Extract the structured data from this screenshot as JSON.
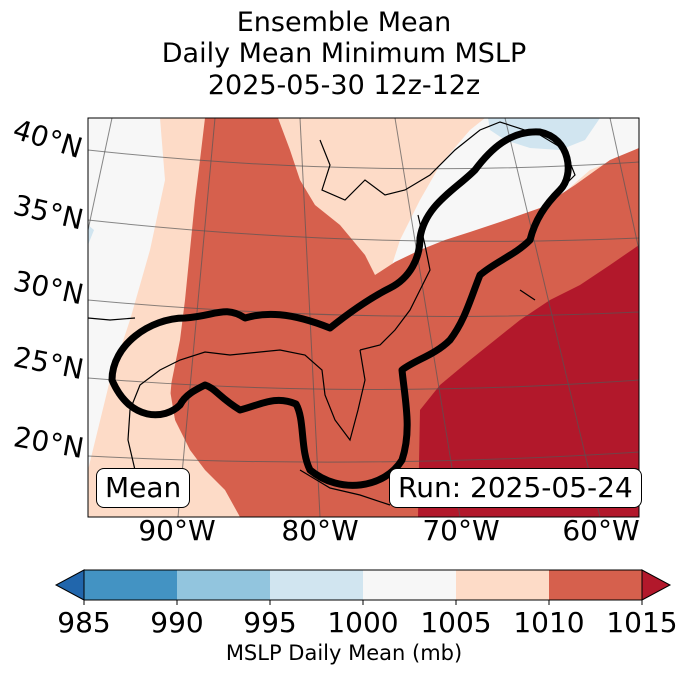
{
  "title": {
    "line1": "Ensemble Mean",
    "line2": "Daily Mean Minimum MSLP",
    "line3": "2025-05-30 12z-12z"
  },
  "labels": {
    "mean": "Mean",
    "run": "Run: 2025-05-24"
  },
  "chart_data": {
    "type": "heatmap",
    "map_projection": "lambert conformal",
    "variable": "Daily Mean Minimum MSLP",
    "units": "mb",
    "lat_ticks": [
      "40°N",
      "35°N",
      "30°N",
      "25°N",
      "20°N"
    ],
    "lon_ticks": [
      "90°W",
      "80°W",
      "70°W",
      "60°W"
    ],
    "colorbar": {
      "label": "MSLP Daily Mean (mb)",
      "ticks": [
        "985",
        "990",
        "995",
        "1000",
        "1005",
        "1010",
        "1015"
      ],
      "bins": [
        {
          "range": [
            985,
            990
          ],
          "color": "#4393c3"
        },
        {
          "range": [
            990,
            995
          ],
          "color": "#92c5de"
        },
        {
          "range": [
            995,
            1000
          ],
          "color": "#d1e5f0"
        },
        {
          "range": [
            1000,
            1005
          ],
          "color": "#f7f7f7"
        },
        {
          "range": [
            1005,
            1010
          ],
          "color": "#fddbc7"
        },
        {
          "range": [
            1010,
            1015
          ],
          "color": "#d6604d"
        }
      ],
      "under_color": "#2166ac",
      "over_color": "#b2182b",
      "extend": "both"
    },
    "contour": {
      "name": "Mean",
      "color": "#000000"
    }
  }
}
